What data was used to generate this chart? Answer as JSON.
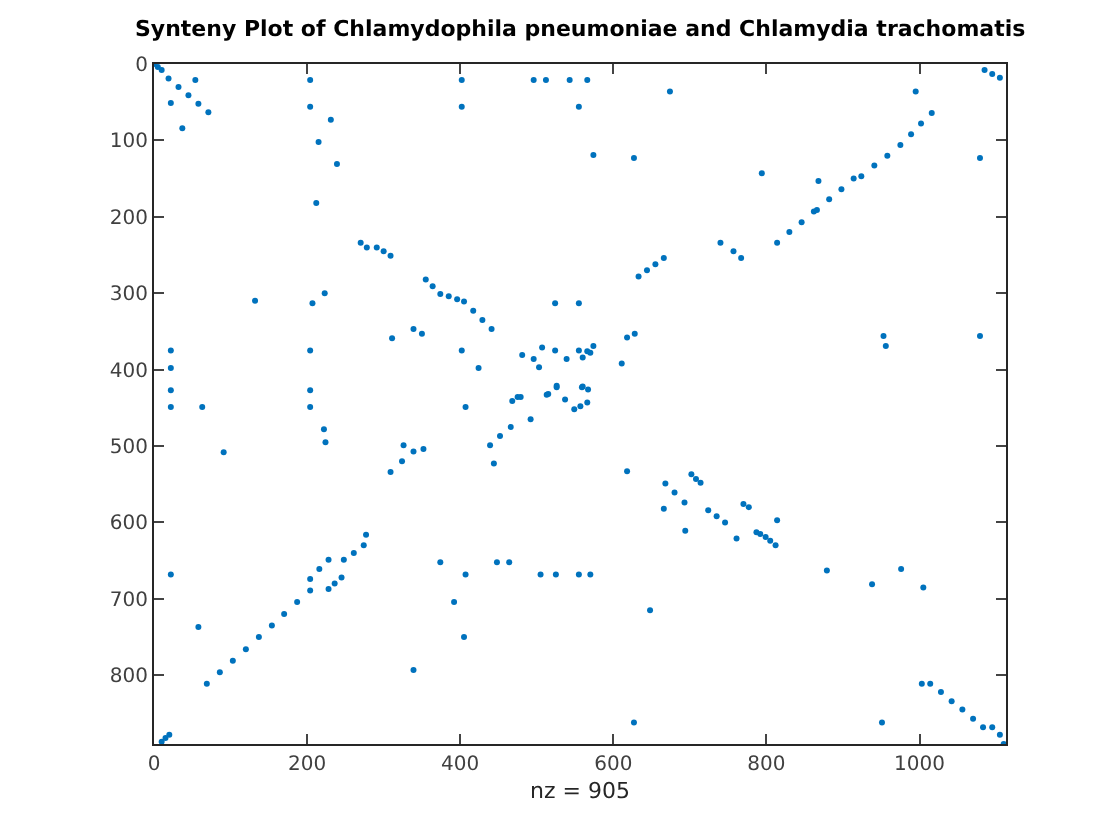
{
  "chart_data": {
    "type": "scatter",
    "title": "Synteny Plot of Chlamydophila pneumoniae and Chlamydia trachomatis",
    "xlabel": "nz = 905",
    "xlim": [
      0,
      1113
    ],
    "ylim": [
      890,
      0
    ],
    "xticks": [
      0,
      200,
      400,
      600,
      800,
      1000
    ],
    "yticks": [
      0,
      100,
      200,
      300,
      400,
      500,
      600,
      700,
      800
    ],
    "grid": false,
    "marker": "circle",
    "series": [
      {
        "color": "#0072bd",
        "x": [
          0,
          5,
          10,
          19,
          32,
          45,
          58,
          71,
          1085,
          1095,
          1105,
          814,
          830,
          846,
          862,
          866,
          882,
          898,
          914,
          924,
          941,
          958,
          975,
          989,
          1002,
          1016,
          633,
          644,
          655,
          666,
          309,
          324,
          339,
          69,
          86,
          103,
          120,
          137,
          154,
          170,
          187,
          204,
          204,
          216,
          228,
          228,
          236,
          245,
          248,
          261,
          274,
          10,
          15,
          20,
          1014,
          1028,
          1042,
          1056,
          1070,
          1083,
          1095,
          1105,
          1110,
          668,
          680,
          693,
          702,
          708,
          714,
          724,
          735,
          746,
          770,
          777,
          787,
          792,
          799,
          805,
          812,
          270,
          278,
          291,
          300,
          309,
          355,
          364,
          374,
          385,
          396,
          405,
          417,
          429,
          441,
          339,
          350,
          439,
          452,
          466,
          515,
          526,
          549,
          557,
          566,
          496,
          503,
          513,
          526,
          560,
          567,
          618,
          628,
          757,
          767,
          953,
          956,
          54,
          22,
          37,
          204,
          204,
          231,
          215,
          239,
          212,
          132,
          207,
          223,
          311,
          402,
          402,
          496,
          512,
          543,
          555,
          566,
          574,
          627,
          674,
          995,
          1079,
          794,
          868,
          740,
          524,
          555,
          1079,
          22,
          204,
          402,
          524,
          555,
          570,
          574,
          507,
          481,
          539,
          560,
          611,
          424,
          22,
          22,
          204,
          22,
          63,
          204,
          407,
          468,
          479,
          537,
          492,
          559,
          475,
          222,
          224,
          326,
          352,
          91,
          444,
          618,
          666,
          694,
          761,
          814,
          374,
          448,
          464,
          22,
          407,
          505,
          525,
          555,
          570,
          277,
          879,
          938,
          976,
          1005,
          392,
          648,
          58,
          405,
          339,
          1003,
          627,
          951,
          566
        ],
        "values": [
          0,
          4,
          8,
          19,
          30,
          41,
          52,
          63,
          8,
          13,
          18,
          234,
          220,
          207,
          193,
          191,
          177,
          164,
          150,
          147,
          133,
          120,
          106,
          92,
          78,
          64,
          278,
          270,
          262,
          254,
          534,
          520,
          507,
          811,
          796,
          781,
          766,
          750,
          735,
          720,
          704,
          689,
          674,
          661,
          649,
          687,
          680,
          672,
          649,
          640,
          630,
          887,
          882,
          878,
          811,
          822,
          834,
          845,
          857,
          868,
          868,
          878,
          890,
          549,
          561,
          574,
          537,
          543,
          548,
          584,
          592,
          600,
          576,
          580,
          613,
          615,
          619,
          624,
          630,
          234,
          240,
          240,
          245,
          251,
          282,
          291,
          301,
          304,
          308,
          311,
          323,
          335,
          347,
          347,
          353,
          499,
          487,
          475,
          432,
          421,
          452,
          448,
          443,
          386,
          397,
          433,
          423,
          422,
          426,
          358,
          353,
          245,
          254,
          356,
          369,
          21,
          51,
          84,
          21,
          56,
          73,
          102,
          131,
          182,
          310,
          313,
          300,
          359,
          21,
          56,
          21,
          21,
          21,
          56,
          21,
          119,
          123,
          36,
          36,
          123,
          143,
          153,
          234,
          313,
          313,
          356,
          375,
          375,
          375,
          375,
          375,
          378,
          369,
          371,
          381,
          386,
          384,
          392,
          398,
          398,
          427,
          427,
          449,
          449,
          449,
          449,
          441,
          436,
          439,
          465,
          423,
          436,
          478,
          495,
          499,
          504,
          508,
          523,
          533,
          582,
          611,
          621,
          597,
          652,
          652,
          652,
          668,
          668,
          668,
          668,
          668,
          668,
          616,
          663,
          681,
          661,
          685,
          704,
          715,
          737,
          750,
          793,
          811,
          862,
          862,
          376
        ]
      }
    ]
  }
}
